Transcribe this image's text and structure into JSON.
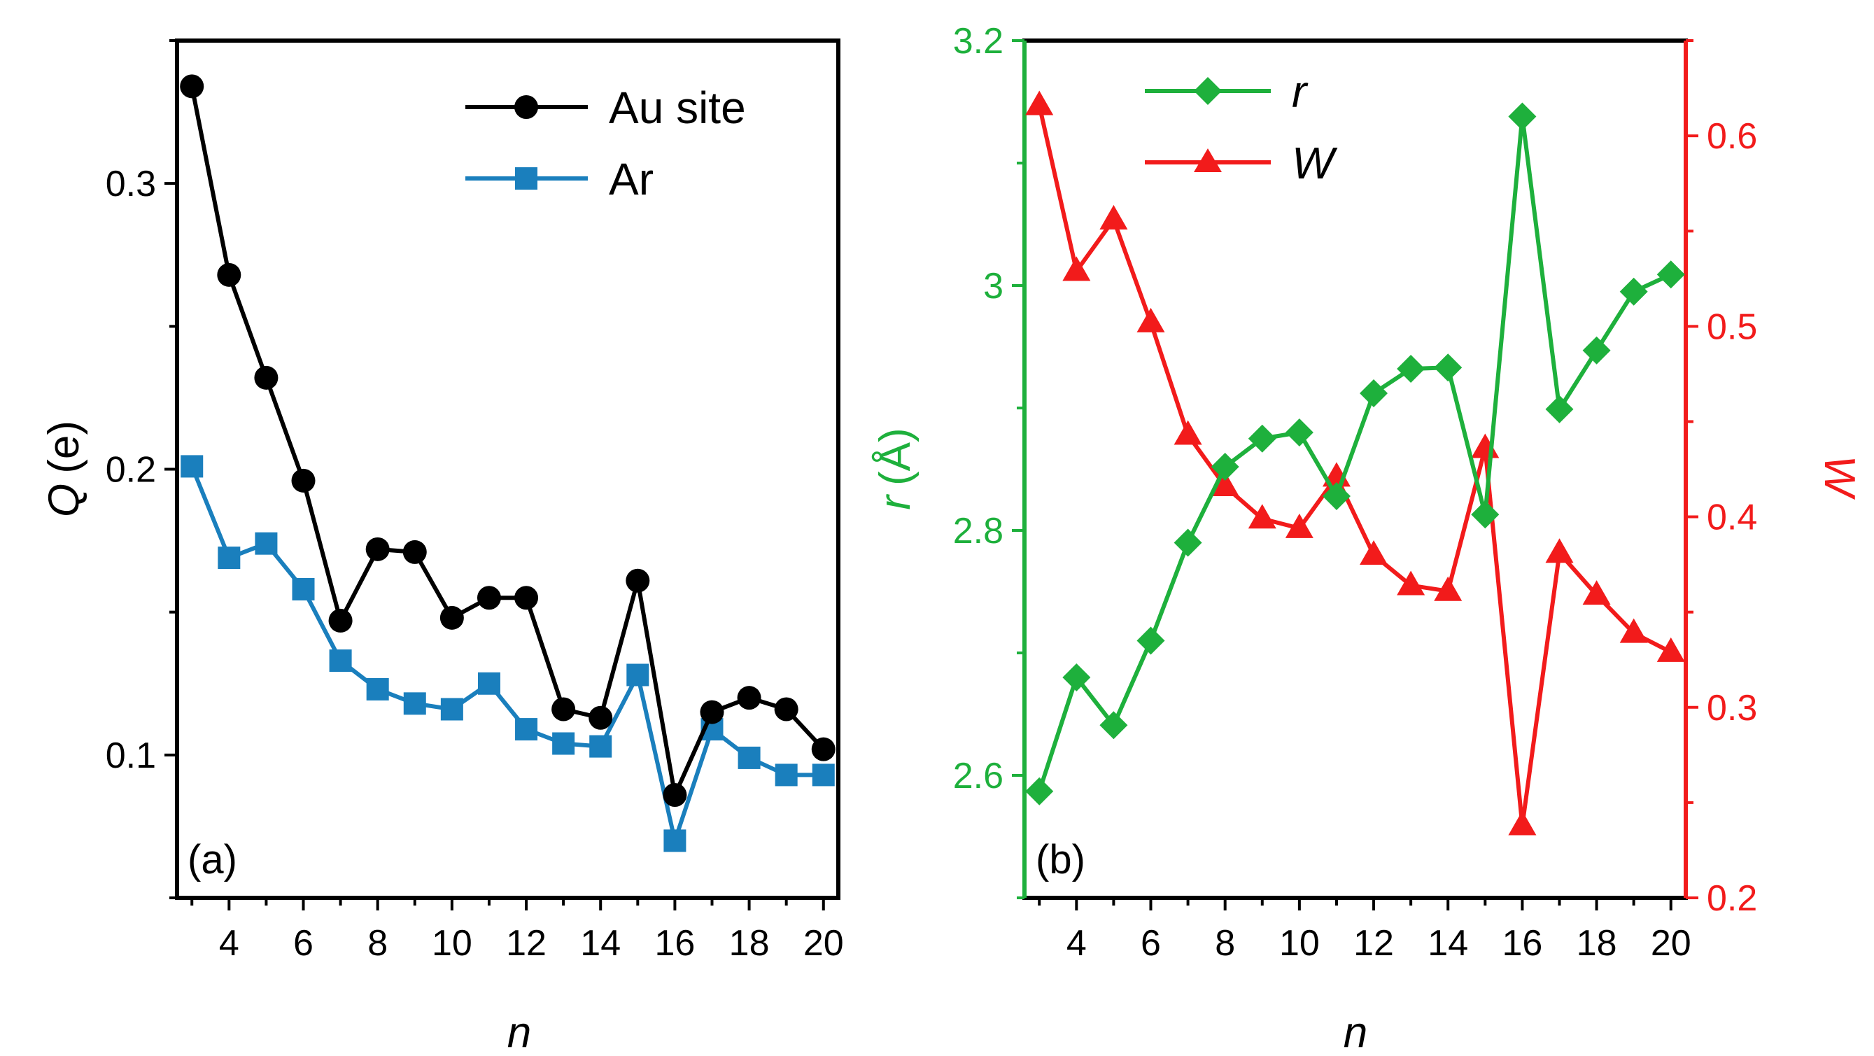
{
  "colors": {
    "black": "#000000",
    "blue": "#1a7fbd",
    "green": "#1eb03c",
    "red": "#f21b1b"
  },
  "chart_data": [
    {
      "type": "line",
      "panel_label": "(a)",
      "xlabel": "n",
      "ylabel_symbol": "Q",
      "ylabel_unit": "(e)",
      "xlim": [
        2.6,
        20.4
      ],
      "ylim": [
        0.05,
        0.35
      ],
      "x_ticks": [
        4,
        6,
        8,
        10,
        12,
        14,
        16,
        18,
        20
      ],
      "x_tick_labels": [
        "4",
        "6",
        "8",
        "10",
        "12",
        "14",
        "16",
        "18",
        "20"
      ],
      "y_ticks": [
        0.1,
        0.2,
        0.3
      ],
      "y_tick_labels": [
        "0.1",
        "0.2",
        "0.3"
      ],
      "legend_position": "top-right",
      "x": [
        3,
        4,
        5,
        6,
        7,
        8,
        9,
        10,
        11,
        12,
        13,
        14,
        15,
        16,
        17,
        18,
        19,
        20
      ],
      "series": [
        {
          "name": "Au site",
          "marker": "circle",
          "color_key": "black",
          "values": [
            0.334,
            0.268,
            0.232,
            0.196,
            0.147,
            0.172,
            0.171,
            0.148,
            0.155,
            0.155,
            0.116,
            0.113,
            0.161,
            0.086,
            0.115,
            0.12,
            0.116,
            0.102
          ]
        },
        {
          "name": "Ar",
          "marker": "square",
          "color_key": "blue",
          "values": [
            0.201,
            0.169,
            0.174,
            0.158,
            0.133,
            0.123,
            0.118,
            0.116,
            0.125,
            0.109,
            0.104,
            0.103,
            0.128,
            0.07,
            0.109,
            0.099,
            0.093,
            0.093
          ]
        }
      ]
    },
    {
      "type": "line",
      "panel_label": "(b)",
      "xlabel": "n",
      "xlim": [
        2.6,
        20.4
      ],
      "x_ticks": [
        4,
        6,
        8,
        10,
        12,
        14,
        16,
        18,
        20
      ],
      "x_tick_labels": [
        "4",
        "6",
        "8",
        "10",
        "12",
        "14",
        "16",
        "18",
        "20"
      ],
      "ylabel_left_symbol": "r",
      "ylabel_left_unit": "(Å)",
      "ylim_left": [
        2.5,
        3.2
      ],
      "y_ticks_left": [
        2.6,
        2.8,
        3.0,
        3.2
      ],
      "y_tick_labels_left": [
        "2.6",
        "2.8",
        "3",
        "3.2"
      ],
      "ylabel_right": "W",
      "ylim_right": [
        0.2,
        0.65
      ],
      "y_ticks_right": [
        0.2,
        0.3,
        0.4,
        0.5,
        0.6
      ],
      "y_tick_labels_right": [
        "0.2",
        "0.3",
        "0.4",
        "0.5",
        "0.6"
      ],
      "legend_position": "top-center",
      "x": [
        3,
        4,
        5,
        6,
        7,
        8,
        9,
        10,
        11,
        12,
        13,
        14,
        15,
        16,
        17,
        18,
        19,
        20
      ],
      "series": [
        {
          "name": "r",
          "marker": "diamond",
          "color_key": "green",
          "axis": "left",
          "values": [
            2.587,
            2.68,
            2.641,
            2.71,
            2.79,
            2.852,
            2.875,
            2.88,
            2.828,
            2.912,
            2.932,
            2.933,
            2.813,
            3.138,
            2.899,
            2.947,
            2.995,
            3.009
          ]
        },
        {
          "name": "W",
          "marker": "triangle",
          "color_key": "red",
          "axis": "right",
          "values": [
            0.616,
            0.529,
            0.556,
            0.502,
            0.443,
            0.416,
            0.399,
            0.394,
            0.421,
            0.38,
            0.364,
            0.361,
            0.436,
            0.238,
            0.381,
            0.359,
            0.339,
            0.329
          ]
        }
      ]
    }
  ]
}
